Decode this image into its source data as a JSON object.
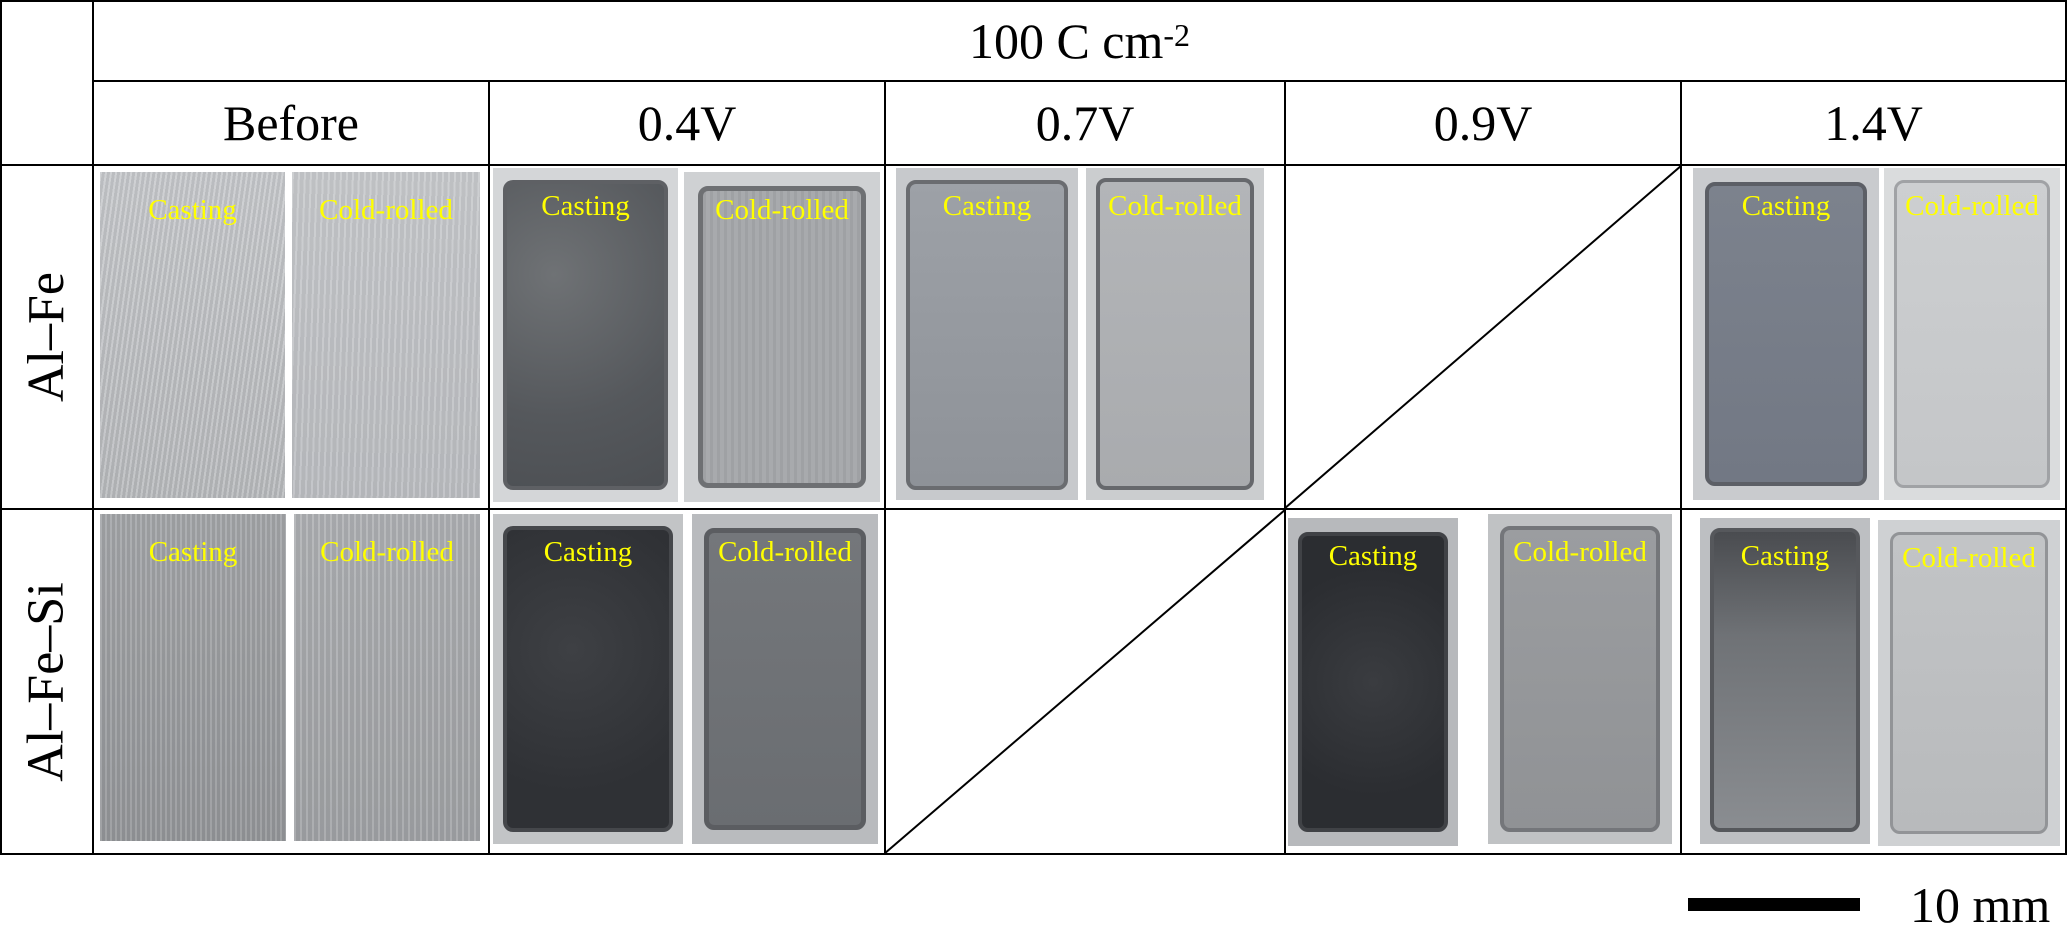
{
  "header": {
    "title_main": "100 C cm",
    "title_exp": "-2",
    "columns": [
      "Before",
      "0.4V",
      "0.7V",
      "0.9V",
      "1.4V"
    ]
  },
  "rows": [
    "Al–Fe",
    "Al–Fe–Si"
  ],
  "sample_labels": {
    "casting": "Casting",
    "cold_rolled": "Cold-rolled"
  },
  "scale_bar": {
    "label": "10 mm"
  },
  "colors": {
    "label_text": "#ffff00",
    "grid": "#000000"
  }
}
